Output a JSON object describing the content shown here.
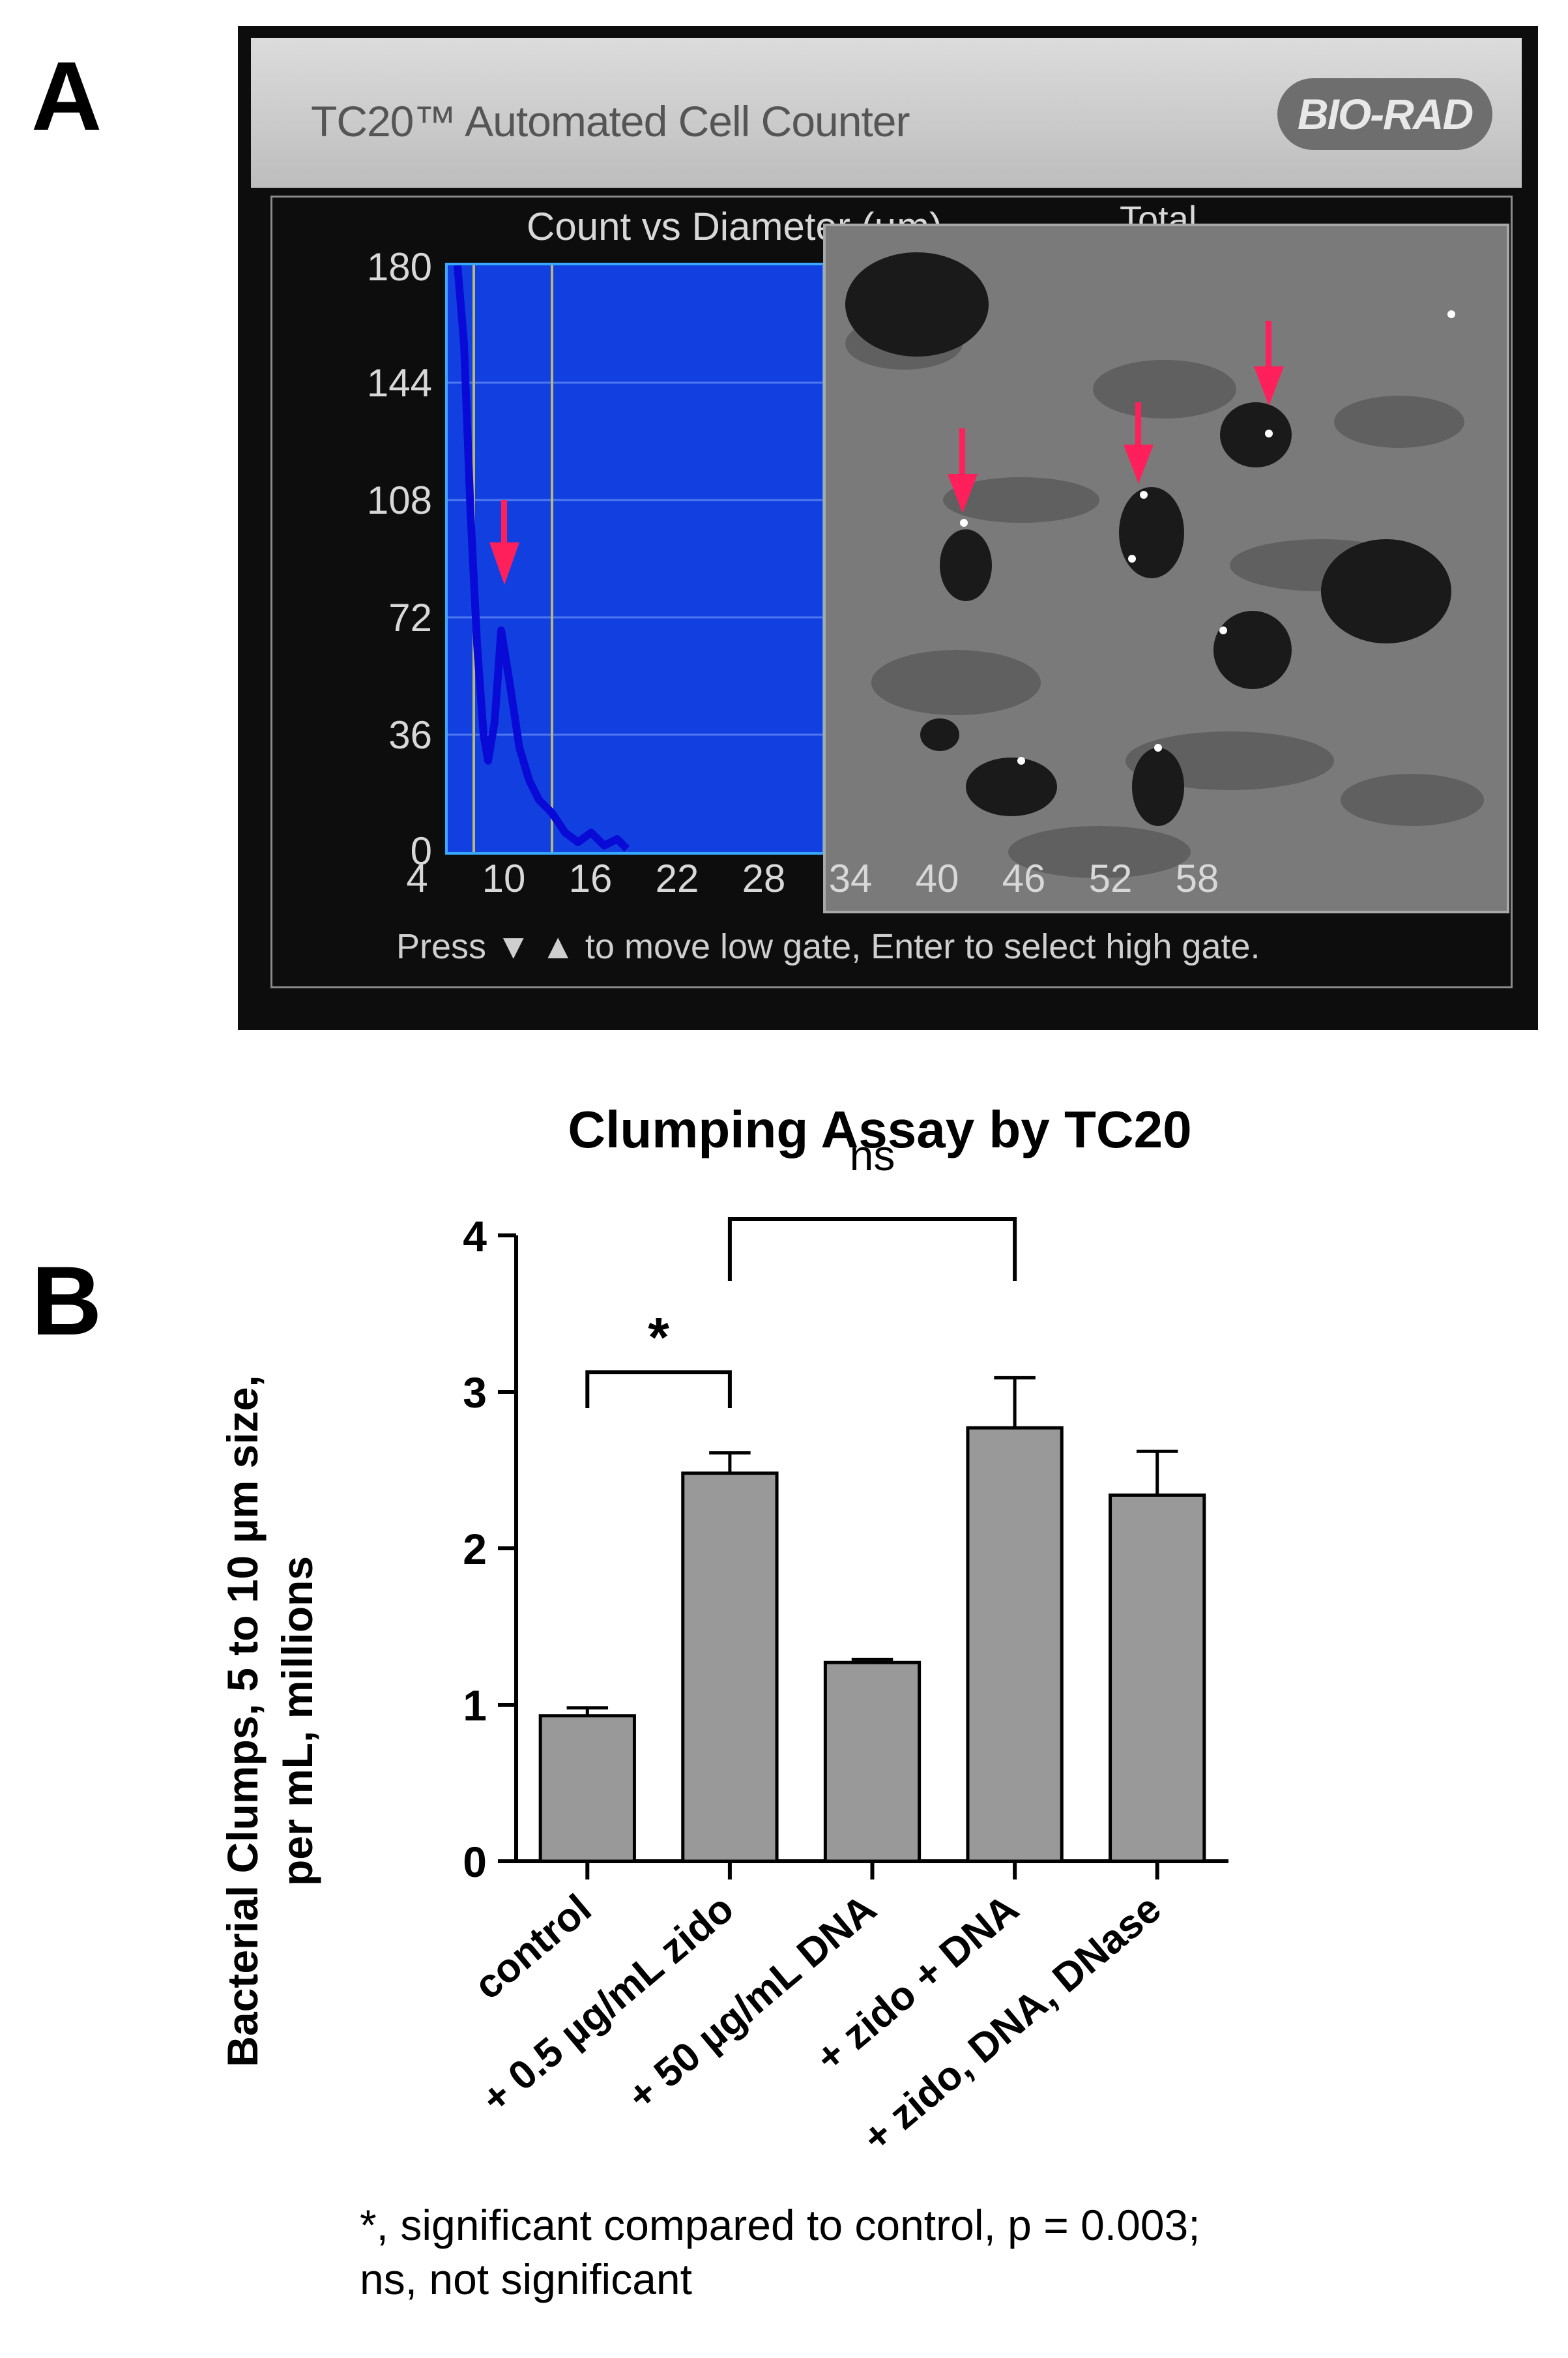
{
  "panel_a": {
    "letter": "A",
    "device": {
      "title": "TC20™ Automated Cell Counter",
      "logo": "BIO-RAD",
      "histogram_title": "Count vs Diameter (µm)",
      "legend_total": "Total",
      "y_ticks": [
        "180",
        "144",
        "108",
        "72",
        "36",
        "0"
      ],
      "x_ticks": [
        "4",
        "10",
        "16",
        "22",
        "28",
        "34",
        "40",
        "46",
        "52",
        "58"
      ],
      "hint": "Press ▼ ▲ to move low gate, Enter to select high gate.",
      "arrow_color": "#ff1f5a",
      "plot_color": "#1240e0"
    }
  },
  "panel_b": {
    "letter": "B"
  },
  "chart_data": {
    "type": "bar",
    "title": "Clumping Assay by TC20",
    "ylabel_line1": "Bacterial Clumps, 5 to 10 µm size,",
    "ylabel_line2": "per mL, millions",
    "xlabel": "",
    "categories": [
      "control",
      "+ 0.5 µg/mL zido",
      "+ 50 µg/mL DNA",
      "+ zido + DNA",
      "+ zido, DNA, DNase"
    ],
    "values": [
      0.93,
      2.48,
      1.27,
      2.77,
      2.34
    ],
    "errors": [
      0.05,
      0.13,
      0.02,
      0.32,
      0.28
    ],
    "ylim": [
      0,
      4
    ],
    "yticks": [
      "0",
      "1",
      "2",
      "3",
      "4"
    ],
    "bar_color": "#999999",
    "grid": false,
    "annotations": [
      {
        "label": "*",
        "from": "control",
        "to": "+ 0.5 µg/mL zido"
      },
      {
        "label": "ns",
        "from": "+ 0.5 µg/mL zido",
        "to": "+ zido + DNA"
      }
    ]
  },
  "footnote": {
    "line1": "*, significant compared to control, p = 0.003;",
    "line2": "ns, not significant"
  }
}
